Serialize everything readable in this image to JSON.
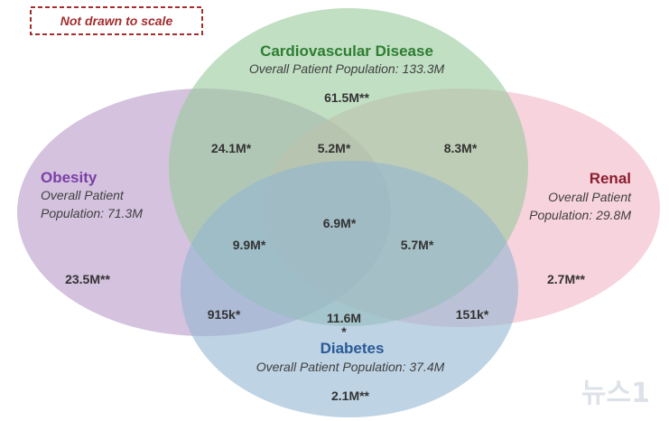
{
  "note": "Not drawn to scale",
  "sets": {
    "cardiovascular": {
      "title": "Cardiovascular Disease",
      "subtitle": "Overall Patient Population: 133.3M",
      "color": "#2e7d32",
      "fill": "#97c99b"
    },
    "obesity": {
      "title": "Obesity",
      "subtitle_line1": "Overall Patient",
      "subtitle_line2": "Population: 71.3M",
      "color": "#7b3fa6",
      "fill": "#b89ac8"
    },
    "renal": {
      "title": "Renal",
      "subtitle_line1": "Overall Patient",
      "subtitle_line2": "Population: 29.8M",
      "color": "#8b1e2e",
      "fill": "#f1b5c6"
    },
    "diabetes": {
      "title": "Diabetes",
      "subtitle": "Overall Patient Population: 37.4M",
      "color": "#2a5a96",
      "fill": "#92b5d2"
    }
  },
  "regions": {
    "cv_only": "61.5M**",
    "obesity_only": "23.5M**",
    "renal_only": "2.7M**",
    "diabetes_only": "2.1M**",
    "cv_obesity": "24.1M*",
    "cv_renal_top": "5.2M*",
    "cv_renal_right": "8.3M*",
    "all_four": "6.9M*",
    "cv_obesity_diabetes": "9.9M*",
    "cv_renal_diabetes": "5.7M*",
    "obesity_diabetes": "915k*",
    "cv_diabetes_value": "11.6M",
    "cv_diabetes_star": "*",
    "renal_diabetes": "151k*"
  },
  "watermark": "뉴스1"
}
